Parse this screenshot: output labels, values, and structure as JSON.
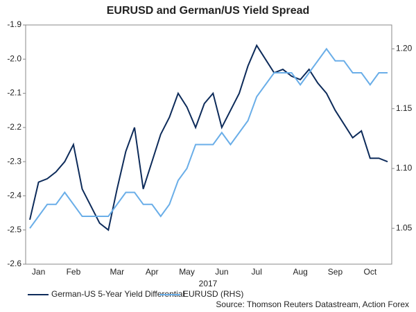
{
  "chart_data": {
    "type": "line",
    "title": "EURUSD and German/US Yield Spread",
    "x_label": "2017",
    "source": "Source: Thomson Reuters Datastream, Action Forex",
    "categories": [
      null,
      "Jan",
      null,
      null,
      null,
      "Feb",
      null,
      null,
      null,
      null,
      "Mar",
      null,
      null,
      null,
      "Apr",
      null,
      null,
      null,
      "May",
      null,
      null,
      null,
      "Jun",
      null,
      null,
      null,
      "Jul",
      null,
      null,
      null,
      null,
      "Aug",
      null,
      null,
      null,
      "Sep",
      null,
      null,
      null,
      "Oct",
      null,
      null
    ],
    "ylim": [
      -2.6,
      -1.9
    ],
    "yticks": [
      -2.6,
      -2.5,
      -2.4,
      -2.3,
      -2.2,
      -2.1,
      {
        "value": -2.0,
        "label": "-2.0"
      },
      -1.9
    ],
    "y2lim": [
      1.02,
      1.22
    ],
    "y2ticks": [
      1.05,
      {
        "value": 1.1,
        "label": "1.10"
      },
      1.15,
      {
        "value": 1.2,
        "label": "1.20"
      }
    ],
    "legend": "bottom",
    "series": [
      {
        "name": "German-US 5-Year Yield Differential",
        "color": "#0d2b5a",
        "values": [
          -2.47,
          -2.36,
          -2.35,
          -2.33,
          -2.3,
          -2.25,
          -2.38,
          -2.43,
          -2.48,
          -2.5,
          -2.38,
          -2.27,
          -2.2,
          -2.38,
          -2.3,
          -2.22,
          -2.17,
          -2.1,
          -2.14,
          -2.2,
          -2.13,
          -2.1,
          -2.2,
          -2.15,
          -2.1,
          -2.02,
          -1.96,
          -2.0,
          -2.04,
          -2.03,
          -2.05,
          -2.06,
          -2.03,
          -2.07,
          -2.1,
          -2.15,
          -2.19,
          -2.23,
          -2.21,
          -2.29,
          -2.29,
          -2.3
        ]
      },
      {
        "name": "EURUSD (RHS)",
        "color": "#6aaee8",
        "axis": "y2",
        "values": [
          1.05,
          1.06,
          1.07,
          1.07,
          1.08,
          1.07,
          1.06,
          1.06,
          1.06,
          1.06,
          1.07,
          1.08,
          1.08,
          1.07,
          1.07,
          1.06,
          1.07,
          1.09,
          1.1,
          1.12,
          1.12,
          1.12,
          1.13,
          1.12,
          1.13,
          1.14,
          1.16,
          1.17,
          1.18,
          1.18,
          1.18,
          1.17,
          1.18,
          1.19,
          1.2,
          1.19,
          1.19,
          1.18,
          1.18,
          1.17,
          1.18,
          1.18
        ]
      }
    ]
  }
}
